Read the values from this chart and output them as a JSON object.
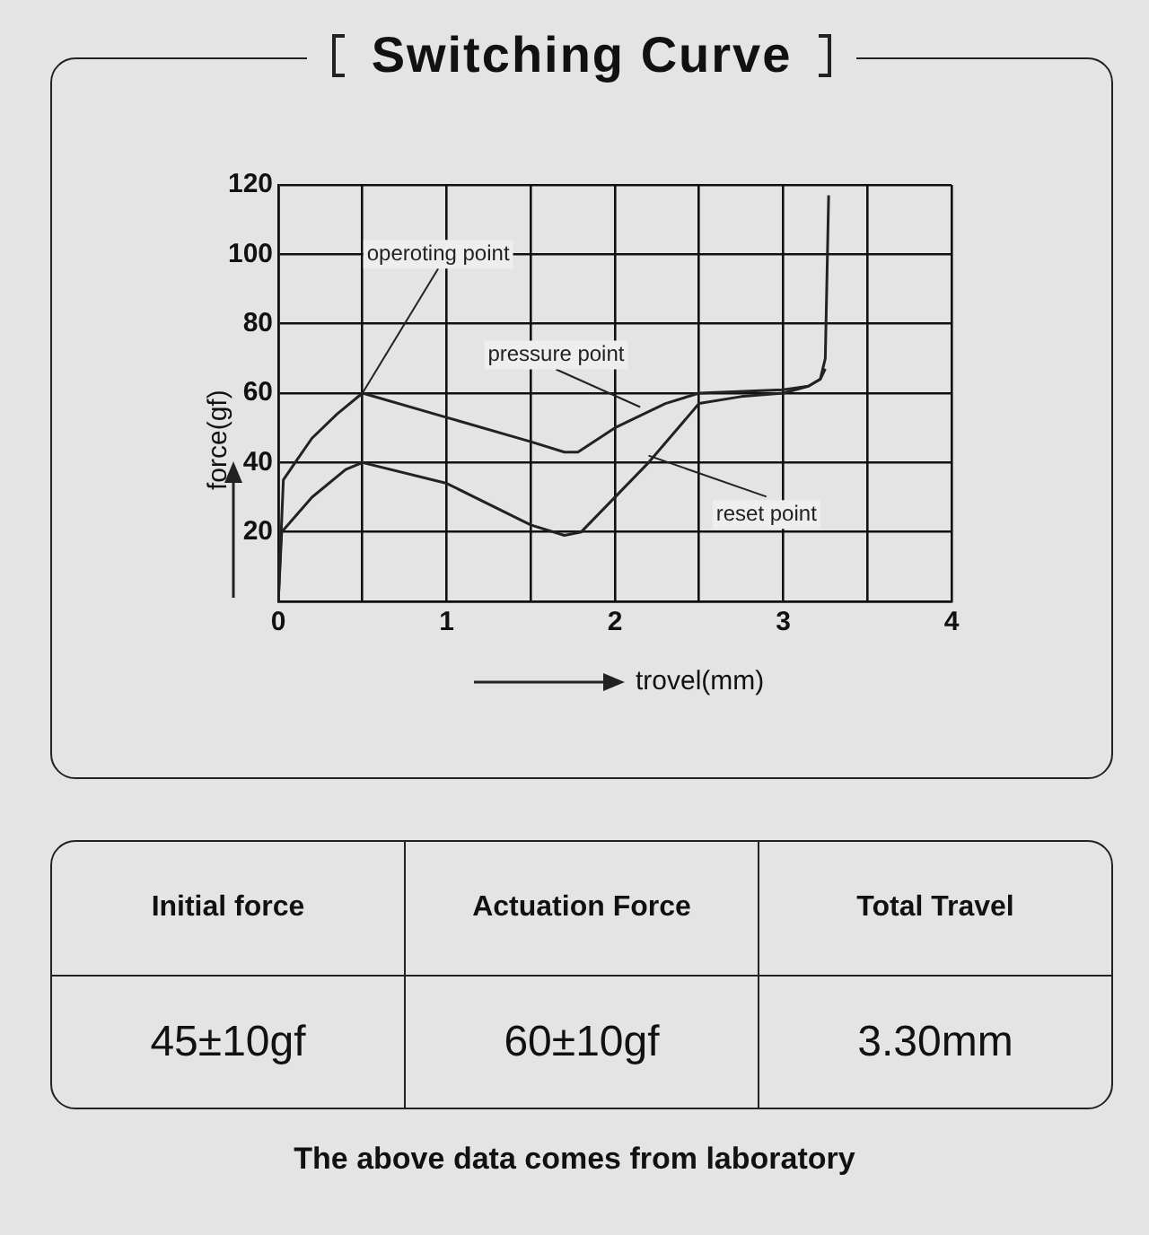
{
  "chart_data": {
    "type": "line",
    "title": "Switching Curve",
    "xlabel": "trovel(mm)",
    "ylabel": "force(gf)",
    "xlim": [
      0,
      4
    ],
    "ylim": [
      0,
      120
    ],
    "xticks": [
      0,
      {
        "value": 0.5,
        "label": null
      },
      1,
      {
        "value": 1.5,
        "label": null
      },
      2,
      {
        "value": 2.5,
        "label": null
      },
      3,
      {
        "value": 3.5,
        "label": null
      },
      4
    ],
    "yticks": [
      {
        "value": 0,
        "label": null
      },
      20,
      40,
      60,
      80,
      100,
      120
    ],
    "grid": true,
    "legend": false,
    "marker": "none",
    "line_style": "solid",
    "series": [
      {
        "color": "#222222",
        "x": [
          0,
          0.03,
          0.1,
          0.2,
          0.35,
          0.5,
          1.0,
          1.5,
          1.7,
          1.78,
          2.0,
          2.3,
          2.5,
          3.0,
          3.15,
          3.22,
          3.25,
          3.27
        ],
        "values": [
          0,
          35,
          40,
          47,
          54,
          60,
          53,
          46,
          43,
          43,
          50,
          57,
          60,
          61,
          62,
          64,
          70,
          117
        ]
      },
      {
        "color": "#222222",
        "x": [
          0,
          0.02,
          0.2,
          0.4,
          0.5,
          1.0,
          1.5,
          1.7,
          1.8,
          2.2,
          2.5,
          2.75,
          3.0,
          3.15,
          3.22,
          3.25
        ],
        "values": [
          0,
          20,
          30,
          38,
          40,
          34,
          22,
          19,
          20,
          40,
          57,
          59,
          60,
          62,
          64,
          67
        ]
      }
    ],
    "annotations": [
      {
        "text": "operoting point",
        "x": 0.5,
        "y": 60
      },
      {
        "text": "pressure point",
        "x": 2.15,
        "y": 56
      },
      {
        "text": "reset point",
        "x": 2.2,
        "y": 42
      },
      "Initial force",
      "Actuation Force",
      "Total Travel",
      "45±10gf",
      "60±10gf",
      "3.30mm",
      "The above data comes from laboratory"
    ]
  }
}
